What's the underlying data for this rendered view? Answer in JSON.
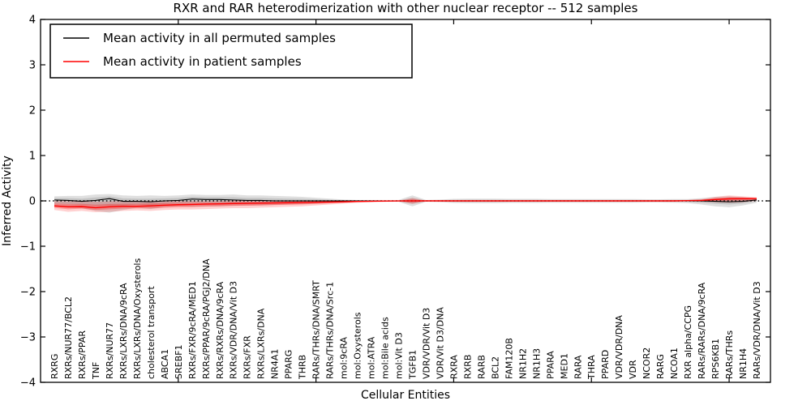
{
  "chart_data": {
    "type": "line",
    "title": "RXR and RAR heterodimerization with other nuclear receptor -- 512 samples",
    "xlabel": "Cellular Entities",
    "ylabel": "Inferred Activity",
    "ylim": [
      -4,
      4
    ],
    "yticks": [
      -4,
      -3,
      -2,
      -1,
      0,
      1,
      2,
      3,
      4
    ],
    "xtick_positions": [
      10,
      20,
      30,
      40,
      50
    ],
    "grid": false,
    "zero_line": true,
    "legend_position": "upper left",
    "categories": [
      "RXRG",
      "RXRs/NUR77/BCL2",
      "RXRs/PPAR",
      "TNF",
      "RXRs/NUR77",
      "RXRs/LXRs/DNA/9cRA",
      "RXRs/LXRs/DNA/Oxysterols",
      "cholesterol transport",
      "ABCA1",
      "SREBF1",
      "RXRs/FXR/9cRA/MED1",
      "RXRs/PPAR/9cRA/PGJ2/DNA",
      "RXRs/RXRs/DNA/9cRA",
      "RXRs/VDR/DNA/Vit D3",
      "RXRs/FXR",
      "RXRs/LXRs/DNA",
      "NR4A1",
      "PPARG",
      "THRB",
      "RARs/THRs/DNA/SMRT",
      "RARs/THRs/DNA/Src-1",
      "mol:9cRA",
      "mol:Oxysterols",
      "mol:ATRA",
      "mol:Bile acids",
      "mol:Vit D3",
      "TGFB1",
      "VDR/VDR/Vit D3",
      "VDR/Vit D3/DNA",
      "RXRA",
      "RXRB",
      "RARB",
      "BCL2",
      "FAM120B",
      "NR1H2",
      "NR1H3",
      "PPARA",
      "MED1",
      "RARA",
      "THRA",
      "PPARD",
      "VDR/VDR/DNA",
      "VDR",
      "NCOR2",
      "RARG",
      "NCOA1",
      "RXR alpha/CCPG",
      "RARs/RARs/DNA/9cRA",
      "RPS6KB1",
      "RARs/THRs",
      "NR1H4",
      "RARs/VDR/DNA/Vit D3"
    ],
    "series": [
      {
        "name": "Mean activity in all permuted samples",
        "color": "#000000",
        "band_color": "#808080",
        "values": [
          0.02,
          0.01,
          -0.01,
          0.01,
          0.05,
          -0.01,
          -0.01,
          -0.02,
          0.0,
          0.01,
          0.04,
          0.03,
          0.03,
          0.02,
          0.01,
          0.01,
          0.0,
          0.0,
          0.0,
          0.0,
          0.0,
          0.0,
          0.0,
          0.0,
          0.0,
          0.0,
          0.0,
          0.0,
          0.0,
          0.0,
          0.0,
          0.0,
          0.0,
          0.0,
          0.0,
          0.0,
          0.0,
          0.0,
          0.0,
          0.0,
          0.0,
          0.0,
          0.0,
          0.0,
          0.0,
          0.0,
          0.0,
          0.0,
          -0.01,
          -0.02,
          -0.01,
          0.02
        ],
        "band_upper": [
          0.1,
          0.11,
          0.11,
          0.14,
          0.15,
          0.12,
          0.11,
          0.12,
          0.11,
          0.12,
          0.14,
          0.13,
          0.13,
          0.14,
          0.12,
          0.12,
          0.11,
          0.1,
          0.09,
          0.07,
          0.05,
          0.03,
          0.02,
          0.02,
          0.02,
          0.02,
          0.12,
          0.02,
          0.03,
          0.045,
          0.05,
          0.05,
          0.05,
          0.045,
          0.045,
          0.045,
          0.04,
          0.04,
          0.04,
          0.04,
          0.04,
          0.04,
          0.04,
          0.035,
          0.035,
          0.04,
          0.04,
          0.06,
          0.09,
          0.1,
          0.08,
          0.05
        ],
        "band_lower": [
          -0.13,
          -0.15,
          -0.16,
          -0.22,
          -0.26,
          -0.2,
          -0.15,
          -0.18,
          -0.14,
          -0.12,
          -0.13,
          -0.12,
          -0.12,
          -0.11,
          -0.1,
          -0.1,
          -0.09,
          -0.08,
          -0.07,
          -0.06,
          -0.04,
          -0.03,
          -0.02,
          -0.02,
          -0.02,
          -0.02,
          -0.12,
          -0.02,
          -0.03,
          -0.045,
          -0.05,
          -0.05,
          -0.05,
          -0.045,
          -0.045,
          -0.045,
          -0.04,
          -0.04,
          -0.04,
          -0.04,
          -0.04,
          -0.04,
          -0.04,
          -0.035,
          -0.035,
          -0.04,
          -0.05,
          -0.08,
          -0.12,
          -0.14,
          -0.1,
          -0.04
        ]
      },
      {
        "name": "Mean activity in patient samples",
        "color": "#ff0000",
        "band_color": "#ff0000",
        "values": [
          -0.11,
          -0.13,
          -0.125,
          -0.15,
          -0.13,
          -0.12,
          -0.12,
          -0.11,
          -0.095,
          -0.085,
          -0.08,
          -0.07,
          -0.065,
          -0.06,
          -0.055,
          -0.05,
          -0.045,
          -0.04,
          -0.035,
          -0.03,
          -0.025,
          -0.02,
          -0.012,
          -0.008,
          -0.004,
          -0.002,
          0.0,
          0.0,
          0.0,
          0.0,
          0.0,
          0.0,
          0.0,
          0.0,
          0.0,
          0.0,
          0.0,
          0.0,
          0.0,
          0.0,
          0.0,
          0.0,
          0.0,
          0.0,
          0.0,
          0.0,
          0.005,
          0.01,
          0.03,
          0.045,
          0.05,
          0.05
        ],
        "band_upper": [
          0.0,
          -0.01,
          -0.01,
          -0.02,
          -0.01,
          -0.01,
          -0.01,
          0.0,
          0.0,
          0.0,
          0.0,
          0.0,
          0.0,
          0.01,
          0.01,
          0.01,
          0.01,
          0.01,
          0.01,
          0.01,
          0.01,
          0.01,
          0.01,
          0.01,
          0.005,
          0.005,
          0.07,
          0.005,
          0.01,
          0.01,
          0.01,
          0.01,
          0.01,
          0.01,
          0.01,
          0.01,
          0.01,
          0.01,
          0.01,
          0.01,
          0.01,
          0.01,
          0.01,
          0.01,
          0.01,
          0.015,
          0.02,
          0.04,
          0.09,
          0.12,
          0.1,
          0.08
        ],
        "band_lower": [
          -0.2,
          -0.24,
          -0.22,
          -0.25,
          -0.24,
          -0.22,
          -0.21,
          -0.22,
          -0.2,
          -0.19,
          -0.19,
          -0.18,
          -0.17,
          -0.16,
          -0.16,
          -0.15,
          -0.14,
          -0.13,
          -0.12,
          -0.1,
          -0.08,
          -0.06,
          -0.04,
          -0.03,
          -0.02,
          -0.01,
          -0.07,
          -0.01,
          -0.015,
          -0.02,
          -0.02,
          -0.02,
          -0.02,
          -0.02,
          -0.02,
          -0.02,
          -0.02,
          -0.02,
          -0.02,
          -0.02,
          -0.02,
          -0.02,
          -0.02,
          -0.02,
          -0.02,
          -0.02,
          -0.01,
          -0.02,
          -0.03,
          -0.04,
          -0.03,
          0.0
        ]
      }
    ]
  }
}
